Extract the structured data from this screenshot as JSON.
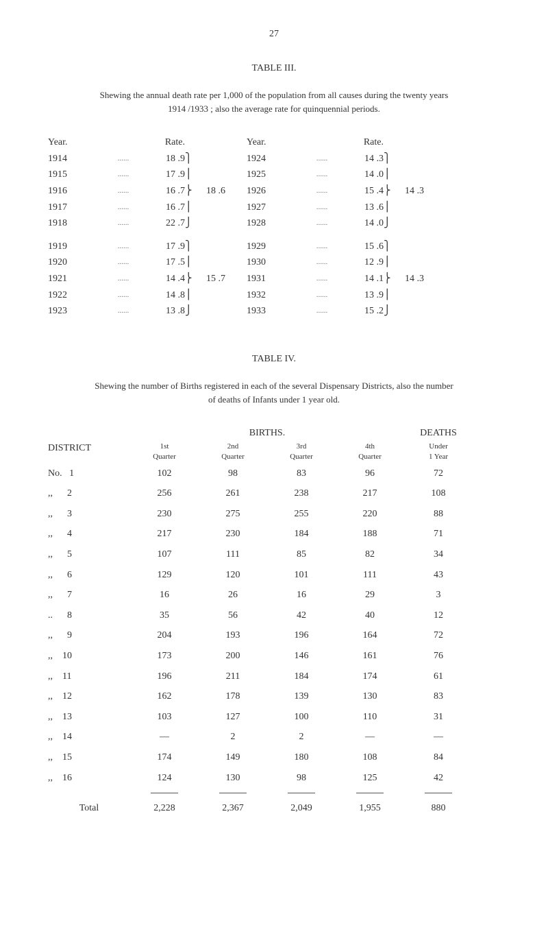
{
  "page_number": "27",
  "table3": {
    "title": "TABLE III.",
    "caption_line1": "Shewing the annual death rate per 1,000 of the population from all causes during the twenty years",
    "caption_line2": "1914 /1933 ;  also the average rate for quinquennial periods.",
    "header_year": "Year.",
    "header_rate": "Rate.",
    "groups": [
      {
        "left_rows": [
          {
            "year": "1914",
            "rate": "18 .9"
          },
          {
            "year": "1915",
            "rate": "17 .9"
          },
          {
            "year": "1916",
            "rate": "16 .7"
          },
          {
            "year": "1917",
            "rate": "16 .7"
          },
          {
            "year": "1918",
            "rate": "22 .7"
          }
        ],
        "left_avg": "18 .6",
        "right_rows": [
          {
            "year": "1924",
            "rate": "14 .3"
          },
          {
            "year": "1925",
            "rate": "14 .0"
          },
          {
            "year": "1926",
            "rate": "15 .4"
          },
          {
            "year": "1927",
            "rate": "13 .6"
          },
          {
            "year": "1928",
            "rate": "14 .0"
          }
        ],
        "right_avg": "14 .3"
      },
      {
        "left_rows": [
          {
            "year": "1919",
            "rate": "17 .9"
          },
          {
            "year": "1920",
            "rate": "17 .5"
          },
          {
            "year": "1921",
            "rate": "14 .4"
          },
          {
            "year": "1922",
            "rate": "14 .8"
          },
          {
            "year": "1923",
            "rate": "13 .8"
          }
        ],
        "left_avg": "15 .7",
        "right_rows": [
          {
            "year": "1929",
            "rate": "15 .6"
          },
          {
            "year": "1930",
            "rate": "12 .9"
          },
          {
            "year": "1931",
            "rate": "14 .1"
          },
          {
            "year": "1932",
            "rate": "13 .9"
          },
          {
            "year": "1933",
            "rate": "15 .2"
          }
        ],
        "right_avg": "14 .3"
      }
    ]
  },
  "table4": {
    "title": "TABLE IV.",
    "caption_line1": "Shewing the number of Births registered in each of the several Dispensary Districts, also the number",
    "caption_line2": "of deaths of Infants under 1 year old.",
    "births_label": "BIRTHS.",
    "deaths_label": "DEATHS",
    "district_label": "DISTRICT",
    "col_headers": {
      "q1_top": "1st",
      "q1_bot": "Quarter",
      "q2_top": "2nd",
      "q2_bot": "Quarter",
      "q3_top": "3rd",
      "q3_bot": "Quarter",
      "q4_top": "4th",
      "q4_bot": "Quarter",
      "deaths_top": "Under",
      "deaths_bot": "1 Year"
    },
    "rows": [
      {
        "label": "No.   1",
        "q1": "102",
        "q2": "98",
        "q3": "83",
        "q4": "96",
        "deaths": "72"
      },
      {
        "label": ",,      2",
        "q1": "256",
        "q2": "261",
        "q3": "238",
        "q4": "217",
        "deaths": "108"
      },
      {
        "label": ",,      3",
        "q1": "230",
        "q2": "275",
        "q3": "255",
        "q4": "220",
        "deaths": "88"
      },
      {
        "label": ",,      4",
        "q1": "217",
        "q2": "230",
        "q3": "184",
        "q4": "188",
        "deaths": "71"
      },
      {
        "label": ",,      5",
        "q1": "107",
        "q2": "111",
        "q3": "85",
        "q4": "82",
        "deaths": "34"
      },
      {
        "label": ",,      6",
        "q1": "129",
        "q2": "120",
        "q3": "101",
        "q4": "111",
        "deaths": "43"
      },
      {
        "label": ",,      7",
        "q1": "16",
        "q2": "26",
        "q3": "16",
        "q4": "29",
        "deaths": "3"
      },
      {
        "label": "..      8",
        "q1": "35",
        "q2": "56",
        "q3": "42",
        "q4": "40",
        "deaths": "12"
      },
      {
        "label": ",,      9",
        "q1": "204",
        "q2": "193",
        "q3": "196",
        "q4": "164",
        "deaths": "72"
      },
      {
        "label": ",,    10",
        "q1": "173",
        "q2": "200",
        "q3": "146",
        "q4": "161",
        "deaths": "76"
      },
      {
        "label": ",,    11",
        "q1": "196",
        "q2": "211",
        "q3": "184",
        "q4": "174",
        "deaths": "61"
      },
      {
        "label": ",,    12",
        "q1": "162",
        "q2": "178",
        "q3": "139",
        "q4": "130",
        "deaths": "83"
      },
      {
        "label": ",,    13",
        "q1": "103",
        "q2": "127",
        "q3": "100",
        "q4": "110",
        "deaths": "31"
      },
      {
        "label": ",,    14",
        "q1": "—",
        "q2": "2",
        "q3": "2",
        "q4": "—",
        "deaths": "—"
      },
      {
        "label": ",,    15",
        "q1": "174",
        "q2": "149",
        "q3": "180",
        "q4": "108",
        "deaths": "84"
      },
      {
        "label": ",,    16",
        "q1": "124",
        "q2": "130",
        "q3": "98",
        "q4": "125",
        "deaths": "42"
      }
    ],
    "total_label": "Total",
    "totals": {
      "q1": "2,228",
      "q2": "2,367",
      "q3": "2,049",
      "q4": "1,955",
      "deaths": "880"
    }
  }
}
